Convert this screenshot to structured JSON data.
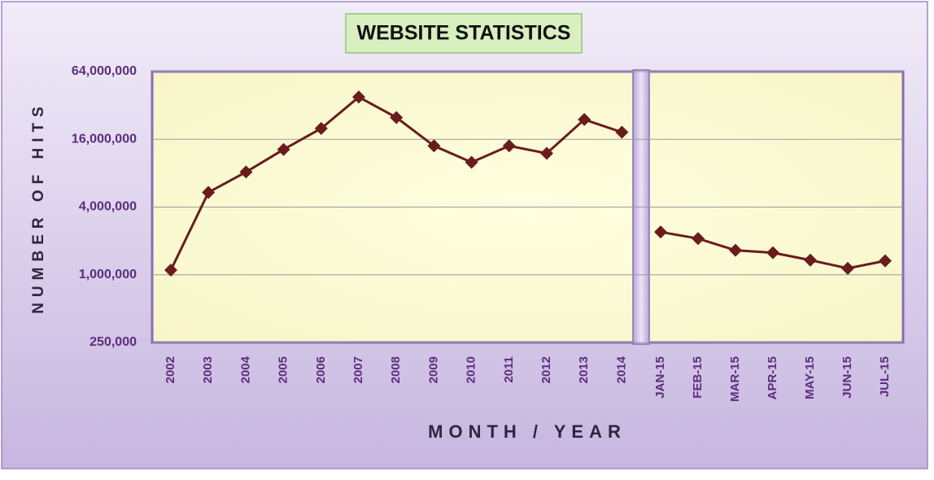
{
  "chart_data": {
    "type": "line",
    "title": "WEBSITE STATISTICS",
    "x_label": "MONTH / YEAR",
    "y_label": "NUMBER OF HITS",
    "categories": [
      "2002",
      "2003",
      "2004",
      "2005",
      "2006",
      "2007",
      "2008",
      "2009",
      "2010",
      "2011",
      "2012",
      "2013",
      "2014",
      null,
      "JAN-15",
      "FEB-15",
      "MAR-15",
      "APR-15",
      "MAY-15",
      "JUN-15",
      "JUL-15"
    ],
    "series": [
      {
        "name": "Hits",
        "color": "#6a1c1c",
        "values": [
          1100000,
          5400000,
          8200000,
          13000000,
          20000000,
          38000000,
          25000000,
          14000000,
          10000000,
          14000000,
          12000000,
          24000000,
          18500000,
          null,
          2400000,
          2100000,
          1650000,
          1570000,
          1350000,
          1140000,
          1330000
        ]
      }
    ],
    "log_scale": true,
    "grid": true,
    "ylim": [
      250000,
      64000000
    ],
    "yticks": [
      {
        "value": 250000,
        "label": "250,000"
      },
      {
        "value": 1000000,
        "label": "1,000,000"
      },
      {
        "value": 4000000,
        "label": "4,000,000"
      },
      {
        "value": 16000000,
        "label": "16,000,000"
      },
      {
        "value": 64000000,
        "label": "64,000,000"
      }
    ]
  }
}
